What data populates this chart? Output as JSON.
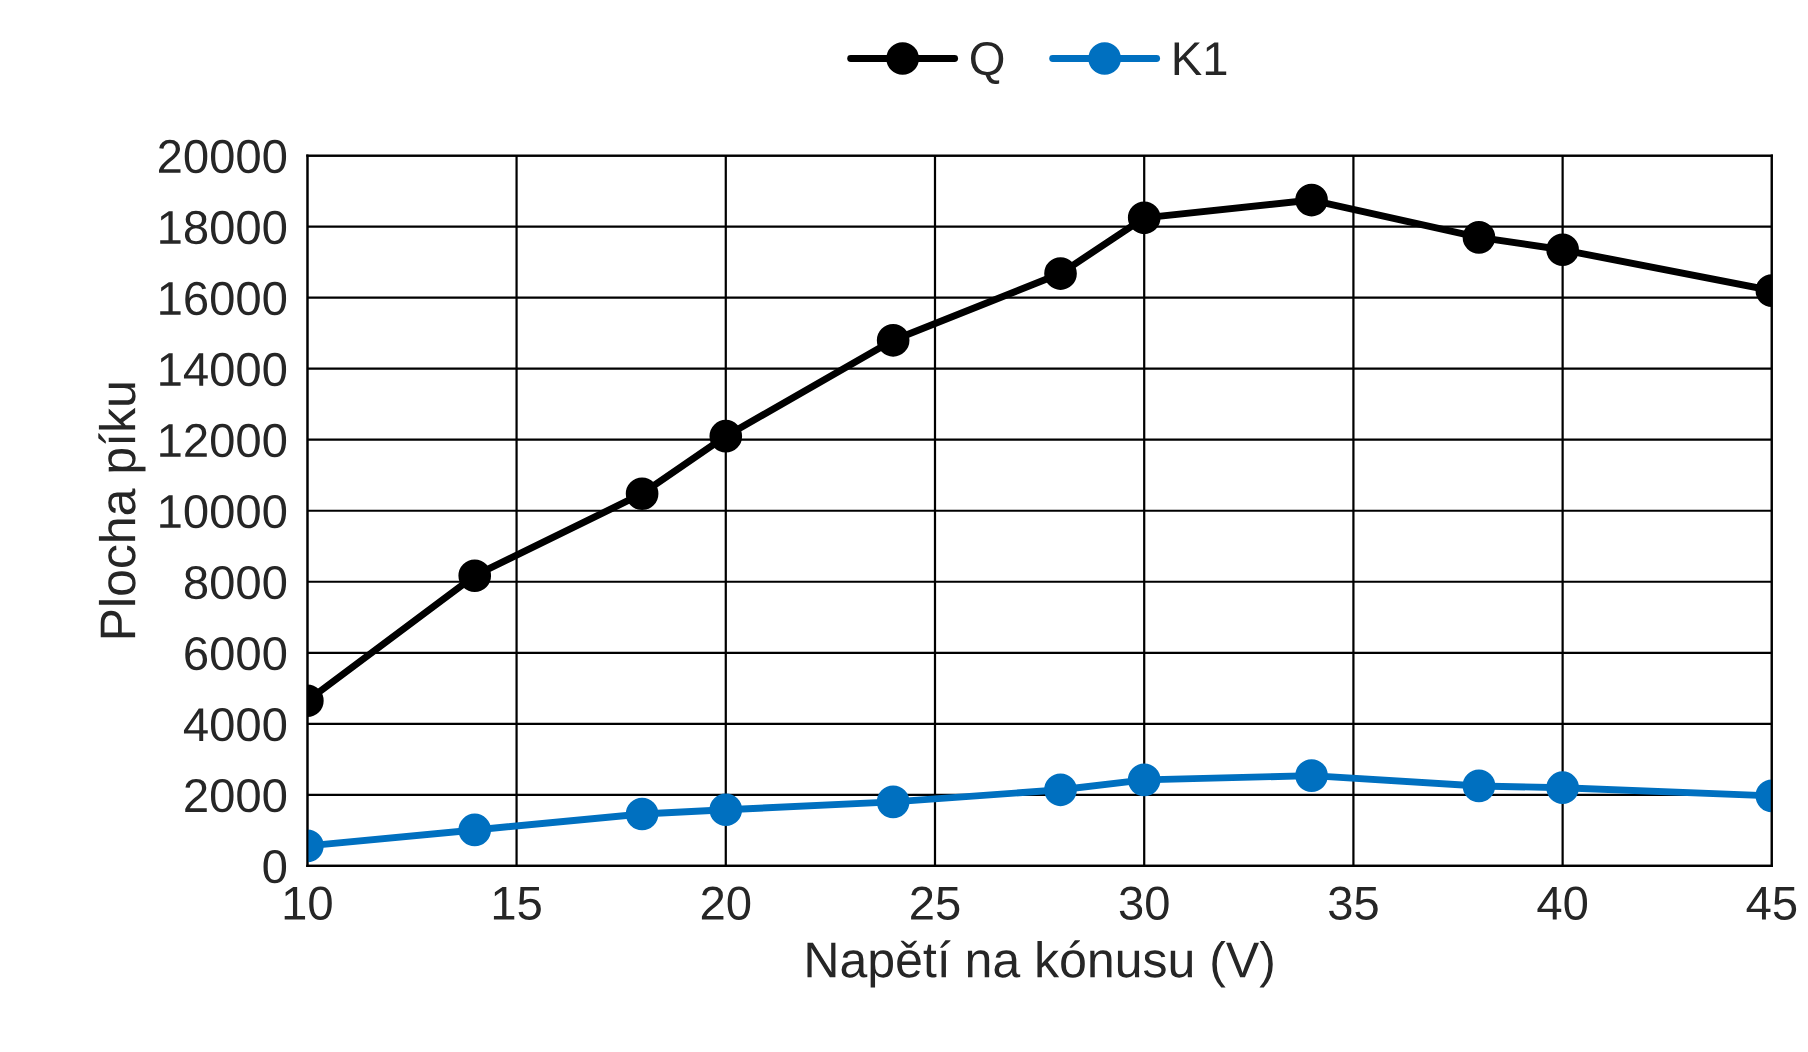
{
  "chart_data": {
    "type": "line",
    "xlabel": "Napětí na kónusu (V)",
    "ylabel": "Plocha píku",
    "x": [
      10,
      14,
      18,
      20,
      24,
      28,
      30,
      34,
      38,
      40,
      45
    ],
    "series": [
      {
        "name": "Q",
        "color": "#000000",
        "values": [
          4650,
          8170,
          10480,
          12100,
          14800,
          16680,
          18250,
          18750,
          17700,
          17350,
          16200
        ]
      },
      {
        "name": "K1",
        "color": "#0070c0",
        "values": [
          560,
          1010,
          1460,
          1580,
          1800,
          2140,
          2420,
          2540,
          2250,
          2200,
          1970
        ]
      }
    ],
    "xlim": [
      10,
      45
    ],
    "xticks": [
      10,
      15,
      20,
      25,
      30,
      35,
      40,
      45
    ],
    "ylim": [
      0,
      20000
    ],
    "yticks": [
      0,
      2000,
      4000,
      6000,
      8000,
      10000,
      12000,
      14000,
      16000,
      18000,
      20000
    ],
    "grid": true,
    "legend": "top",
    "marker": "circle",
    "line_style": "solid"
  }
}
